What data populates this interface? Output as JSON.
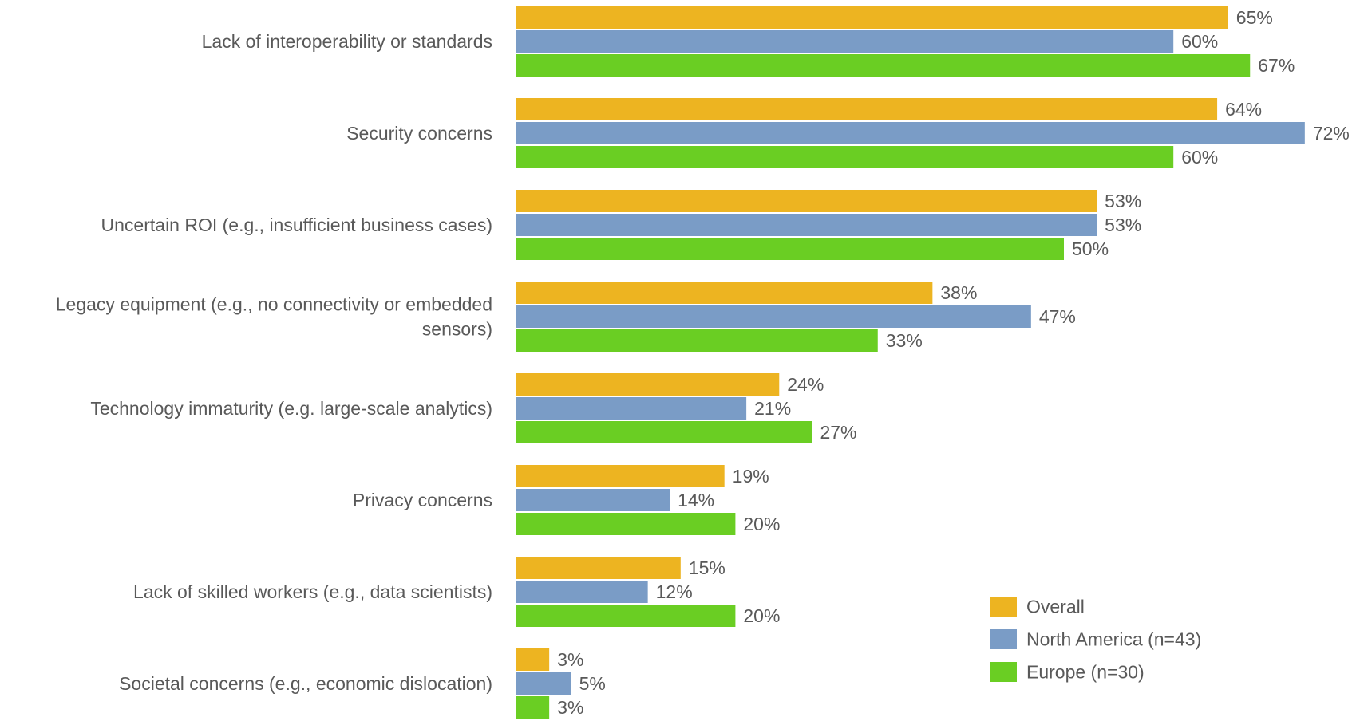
{
  "chart_data": {
    "type": "bar",
    "orientation": "horizontal",
    "categories": [
      [
        "Lack of interoperability or standards"
      ],
      [
        "Security concerns"
      ],
      [
        "Uncertain ROI (e.g., insufficient business cases)"
      ],
      [
        "Legacy equipment (e.g., no connectivity or embedded",
        "sensors)"
      ],
      [
        "Technology immaturity (e.g. large-scale analytics)"
      ],
      [
        "Privacy concerns"
      ],
      [
        "Lack of skilled workers (e.g., data scientists)"
      ],
      [
        "Societal concerns (e.g., economic dislocation)"
      ]
    ],
    "series": [
      {
        "name": "Overall",
        "color": "#EDB421",
        "values": [
          65,
          64,
          53,
          38,
          24,
          19,
          15,
          3
        ]
      },
      {
        "name": "North America (n=43)",
        "color": "#7A9CC6",
        "values": [
          60,
          72,
          53,
          47,
          21,
          14,
          12,
          5
        ]
      },
      {
        "name": "Europe (n=30)",
        "color": "#6ACE23",
        "values": [
          67,
          60,
          50,
          33,
          27,
          20,
          20,
          3
        ]
      }
    ],
    "value_suffix": "%",
    "xlim": [
      0,
      72
    ],
    "grid": false,
    "legend_position": "bottom-right"
  }
}
